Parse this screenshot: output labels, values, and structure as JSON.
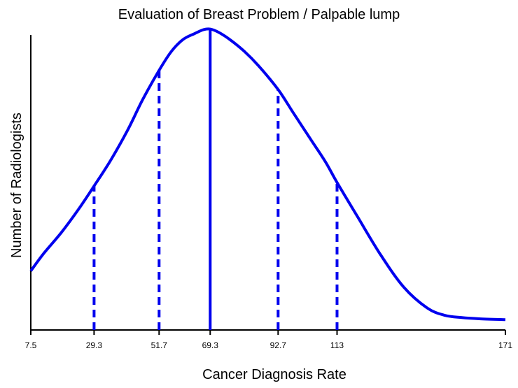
{
  "chart_data": {
    "type": "line",
    "title": "Evaluation of Breast Problem / Palpable lump",
    "xlabel": "Cancer Diagnosis Rate",
    "ylabel": "Number of Radiologists",
    "xlim": [
      7.5,
      171
    ],
    "ylim": [
      0,
      100
    ],
    "x_ticks": [
      {
        "value": 7.5,
        "label": "7.5"
      },
      {
        "value": 29.3,
        "label": "29.3"
      },
      {
        "value": 51.7,
        "label": "51.7"
      },
      {
        "value": 69.3,
        "label": "69.3"
      },
      {
        "value": 92.7,
        "label": "92.7"
      },
      {
        "value": 113,
        "label": "113"
      },
      {
        "value": 171,
        "label": "171"
      }
    ],
    "series": [
      {
        "x": [
          7.5,
          12,
          18,
          24,
          29.3,
          35,
          41,
          46,
          51.7,
          56,
          60,
          64,
          67,
          69.3,
          72,
          76,
          81,
          86,
          92.7,
          98,
          104,
          109,
          113,
          120,
          128,
          136,
          144,
          150,
          156,
          162,
          171
        ],
        "y": [
          20,
          26,
          33,
          41,
          48.8,
          57.5,
          68,
          78,
          88,
          94.5,
          98.5,
          100.5,
          101.8,
          102,
          101,
          98.5,
          94.5,
          89.5,
          81.5,
          73.5,
          64.5,
          57,
          50,
          38.5,
          25.5,
          14.5,
          7.5,
          5,
          4.2,
          3.8,
          3.5
        ]
      }
    ],
    "reference_lines": [
      {
        "x": 29.3,
        "y": 48.8,
        "style": "dashed"
      },
      {
        "x": 51.7,
        "y": 88,
        "style": "dashed"
      },
      {
        "x": 69.3,
        "y": 102,
        "style": "solid"
      },
      {
        "x": 92.7,
        "y": 81.5,
        "style": "dashed"
      },
      {
        "x": 113,
        "y": 50,
        "style": "dashed"
      }
    ],
    "grid": false,
    "colors": {
      "curve": "#0000ee",
      "axis": "#000000"
    }
  }
}
